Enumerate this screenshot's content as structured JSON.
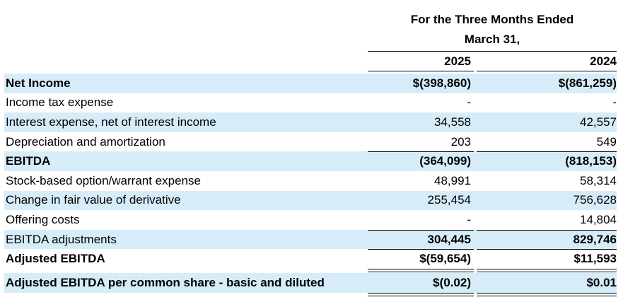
{
  "header": {
    "title_line1": "For the Three Months Ended",
    "title_line2": "March 31,",
    "year1": "2025",
    "year2": "2024"
  },
  "rows": [
    {
      "label": "Net Income",
      "v1": "$(398,860)",
      "v2": "$(861,259)"
    },
    {
      "label": "Income tax expense",
      "v1": "-",
      "v2": "-"
    },
    {
      "label": "Interest expense, net of interest income",
      "v1": "34,558",
      "v2": "42,557"
    },
    {
      "label": "Depreciation and amortization",
      "v1": "203",
      "v2": "549"
    },
    {
      "label": "EBITDA",
      "v1": "(364,099)",
      "v2": "(818,153)"
    },
    {
      "label": "Stock-based option/warrant expense",
      "v1": "48,991",
      "v2": "58,314"
    },
    {
      "label": "Change in fair value of derivative",
      "v1": "255,454",
      "v2": "756,628"
    },
    {
      "label": "Offering costs",
      "v1": "-",
      "v2": "14,804"
    },
    {
      "label": "EBITDA adjustments",
      "v1": "304,445",
      "v2": "829,746"
    },
    {
      "label": "Adjusted EBITDA",
      "v1": "$(59,654)",
      "v2": "$11,593"
    },
    {
      "label": "Adjusted EBITDA per common share - basic and diluted",
      "v1": "$(0.02)",
      "v2": "$0.01"
    }
  ],
  "colors": {
    "row_shade": "#d6edf9",
    "text": "#000000"
  }
}
